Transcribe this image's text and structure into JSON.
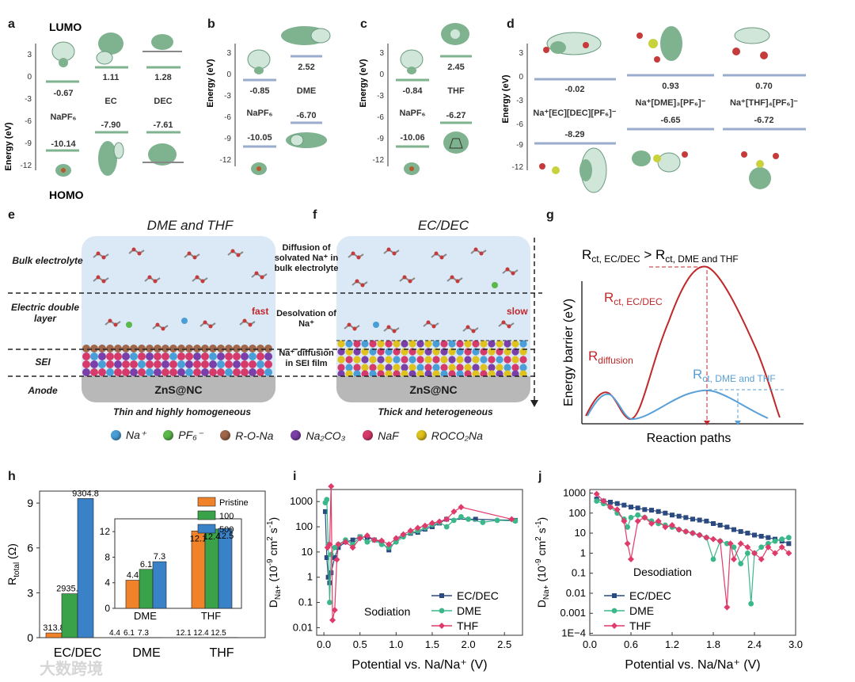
{
  "panel_labels": {
    "a": "a",
    "b": "b",
    "c": "c",
    "d": "d",
    "e": "e",
    "f": "f",
    "g": "g",
    "h": "h",
    "i": "i",
    "j": "j"
  },
  "panel_a": {
    "lumo_label": "LUMO",
    "homo_label": "HOMO",
    "ylabel": "Energy (eV)",
    "yticks": [
      "3",
      "0",
      "-3",
      "-6",
      "-9",
      "-12"
    ],
    "molecules": [
      {
        "name": "NaPF₆",
        "lumo": "-0.67",
        "homo": "-10.14"
      },
      {
        "name": "EC",
        "lumo": "1.11",
        "homo": "-7.90"
      },
      {
        "name": "DEC",
        "lumo": "1.28",
        "homo": "-7.61"
      }
    ]
  },
  "panel_b": {
    "ylabel": "Energy (eV)",
    "yticks": [
      "3",
      "0",
      "-3",
      "-6",
      "-9",
      "-12"
    ],
    "molecules": [
      {
        "name": "NaPF₆",
        "lumo": "-0.85",
        "homo": "-10.05"
      },
      {
        "name": "DME",
        "lumo": "2.52",
        "homo": "-6.70"
      }
    ]
  },
  "panel_c": {
    "ylabel": "Energy (eV)",
    "yticks": [
      "3",
      "0",
      "-3",
      "-6",
      "-9",
      "-12"
    ],
    "molecules": [
      {
        "name": "NaPF₆",
        "lumo": "-0.84",
        "homo": "-10.06"
      },
      {
        "name": "THF",
        "lumo": "2.45",
        "homo": "-6.27"
      }
    ]
  },
  "panel_d": {
    "ylabel": "Energy (eV)",
    "yticks": [
      "3",
      "0",
      "-3",
      "-6",
      "-9",
      "-12"
    ],
    "complexes": [
      {
        "name": "Na⁺[EC][DEC][PF₆]⁻",
        "lumo": "-0.02",
        "homo": "-8.29"
      },
      {
        "name": "Na⁺[DME]₃[PF₆]⁻",
        "lumo": "0.93",
        "homo": "-6.65"
      },
      {
        "name": "Na⁺[THF]₄[PF₆]⁻",
        "lumo": "0.70",
        "homo": "-6.72"
      }
    ]
  },
  "panel_e": {
    "title": "DME and THF",
    "speed": "fast",
    "substrate": "ZnS@NC",
    "caption": "Thin and highly homogeneous"
  },
  "panel_f": {
    "title": "EC/DEC",
    "speed": "slow",
    "substrate": "ZnS@NC",
    "caption": "Thick and heterogeneous"
  },
  "layers": {
    "bulk": "Bulk electrolyte",
    "edl": "Electric double layer",
    "sei": "SEI",
    "anode": "Anode"
  },
  "processes": {
    "diffusion": "Diffusion of solvated Na⁺ in bulk electrolyte",
    "desolvation": "Desolvation of Na⁺",
    "sei_diffusion": "Na⁺ diffusion in SEI film"
  },
  "legend": [
    {
      "label": "Na⁺",
      "color": "#4a9ed8"
    },
    {
      "label": "PF₆⁻",
      "color": "#5cb84a"
    },
    {
      "label": "R-O-Na",
      "color": "#a0664a"
    },
    {
      "label": "Na₂CO₃",
      "color": "#7a3fa8"
    },
    {
      "label": "NaF",
      "color": "#d63a6a"
    },
    {
      "label": "ROCO₂Na",
      "color": "#e0c21c"
    }
  ],
  "panel_g": {
    "inequality": "Rct, EC/DEC > Rct, DME and THF",
    "ineq_left": "R",
    "ineq_left_sub": "ct, EC/DEC",
    "ineq_gt": " > R",
    "ineq_right_sub": "ct, DME and THF",
    "rct_ec": "R",
    "rct_ec_sub": "ct, EC/DEC",
    "rdiff": "R",
    "rdiff_sub": "diffusion",
    "rct_dme": "R",
    "rct_dme_sub": "ct, DME and THF",
    "ylabel": "Energy barrier (eV)",
    "xlabel": "Reaction paths",
    "colors": {
      "ec": "#c0282a",
      "dme": "#5aa0d8"
    }
  },
  "chart_data": [
    {
      "panel": "h",
      "type": "bar",
      "title": "",
      "ylabel": "R_total (Ω)",
      "ylim": [
        0,
        9.8
      ],
      "yticks": [
        "0",
        "3",
        "6",
        "9"
      ],
      "categories": [
        "EC/DEC",
        "DME",
        "THF"
      ],
      "series": [
        {
          "name": "Pristine",
          "values": [
            0.3138,
            0.0044,
            0.0121
          ],
          "labels": [
            "313.8",
            "4.4",
            "12.1"
          ],
          "color": "#f0832a"
        },
        {
          "name": "100",
          "values": [
            2.9355,
            0.0061,
            0.0124
          ],
          "labels": [
            "2935.5",
            "6.1",
            "12.4"
          ],
          "color": "#3aa34a"
        },
        {
          "name": "500",
          "values": [
            9.3048,
            0.0073,
            0.0125
          ],
          "labels": [
            "9304.8",
            "7.3",
            "12.5"
          ],
          "color": "#3a82c8"
        }
      ],
      "scale_note_ylabel": "R_total (Ω) × 1000",
      "bottom_labels": [
        "4.4",
        "6.1",
        "7.3",
        "12.1",
        "12.4",
        "12.5"
      ],
      "inset": {
        "ylim": [
          0,
          14
        ],
        "yticks": [
          "0",
          "4",
          "8",
          "12"
        ],
        "categories": [
          "DME",
          "THF"
        ],
        "values": {
          "Pristine": [
            4.4,
            12.1
          ],
          "100": [
            6.1,
            12.4
          ],
          "500": [
            7.3,
            12.5
          ]
        }
      }
    },
    {
      "panel": "i",
      "type": "line",
      "title": "Sodiation",
      "xlabel": "Potential vs. Na/Na⁺ (V)",
      "ylabel": "D_Na+ (10⁻⁹ cm² s⁻¹)",
      "yscale": "log",
      "ylim": [
        0.005,
        3000
      ],
      "xlim": [
        -0.1,
        2.75
      ],
      "xticks": [
        "0.0",
        "0.5",
        "1.0",
        "1.5",
        "2.0",
        "2.5"
      ],
      "yticks": [
        "0.01",
        "0.1",
        "1",
        "10",
        "100",
        "1000"
      ],
      "series": [
        {
          "name": "EC/DEC",
          "color": "#2a4a80",
          "marker": "square",
          "x": [
            0.02,
            0.04,
            0.06,
            0.08,
            0.1,
            0.15,
            0.2,
            0.3,
            0.4,
            0.5,
            0.6,
            0.7,
            0.8,
            0.9,
            1.0,
            1.1,
            1.2,
            1.3,
            1.4,
            1.5,
            1.6,
            1.7,
            2.1,
            2.65
          ],
          "y": [
            400,
            6,
            1,
            0.6,
            1.5,
            6,
            15,
            25,
            30,
            40,
            38,
            30,
            25,
            12,
            30,
            45,
            55,
            60,
            80,
            100,
            140,
            200,
            200,
            180
          ]
        },
        {
          "name": "DME",
          "color": "#3ab88a",
          "marker": "circle",
          "x": [
            0.02,
            0.04,
            0.06,
            0.08,
            0.1,
            0.15,
            0.2,
            0.3,
            0.4,
            0.5,
            0.6,
            0.7,
            0.8,
            0.9,
            1.0,
            1.1,
            1.2,
            1.3,
            1.4,
            1.5,
            1.6,
            1.7,
            1.8,
            1.9,
            2.0,
            2.2,
            2.4,
            2.65
          ],
          "y": [
            900,
            1200,
            20,
            0.1,
            8,
            15,
            20,
            30,
            20,
            40,
            25,
            30,
            20,
            15,
            25,
            40,
            60,
            70,
            90,
            120,
            150,
            100,
            180,
            250,
            200,
            150,
            180,
            170
          ]
        },
        {
          "name": "THF",
          "color": "#e03a6a",
          "marker": "diamond",
          "x": [
            0.05,
            0.08,
            0.1,
            0.12,
            0.15,
            0.18,
            0.2,
            0.3,
            0.4,
            0.5,
            0.6,
            0.7,
            0.8,
            0.9,
            1.0,
            1.1,
            1.2,
            1.3,
            1.4,
            1.5,
            1.6,
            1.7,
            1.8,
            1.9,
            2.6
          ],
          "y": [
            15,
            20,
            4000,
            0.02,
            0.05,
            5,
            20,
            25,
            15,
            35,
            45,
            30,
            28,
            20,
            35,
            50,
            70,
            90,
            110,
            140,
            160,
            200,
            400,
            600,
            200
          ]
        }
      ]
    },
    {
      "panel": "j",
      "type": "line",
      "title": "Desodiation",
      "xlabel": "Potential vs. Na/Na⁺ (V)",
      "ylabel": "D_Na+ (10⁻⁹ cm² s⁻¹)",
      "yscale": "log",
      "ylim": [
        8e-05,
        1500
      ],
      "xlim": [
        0,
        3.0
      ],
      "xticks": [
        "0.0",
        "0.6",
        "1.2",
        "1.8",
        "2.4",
        "3.0"
      ],
      "yticks": [
        "1E−4",
        "0.001",
        "0.01",
        "0.1",
        "1",
        "10",
        "100",
        "1000"
      ],
      "series": [
        {
          "name": "EC/DEC",
          "color": "#2a4a80",
          "marker": "square",
          "x": [
            0.1,
            0.2,
            0.3,
            0.4,
            0.5,
            0.6,
            0.7,
            0.8,
            0.9,
            1.0,
            1.1,
            1.2,
            1.3,
            1.4,
            1.5,
            1.6,
            1.7,
            1.8,
            1.9,
            2.0,
            2.1,
            2.2,
            2.3,
            2.4,
            2.5,
            2.6,
            2.7,
            2.8,
            2.9
          ],
          "y": [
            500,
            400,
            350,
            300,
            250,
            200,
            180,
            150,
            140,
            120,
            100,
            80,
            70,
            60,
            50,
            45,
            40,
            30,
            25,
            20,
            15,
            12,
            10,
            8,
            7,
            6,
            5,
            4,
            3
          ]
        },
        {
          "name": "DME",
          "color": "#3ab88a",
          "marker": "circle",
          "x": [
            0.1,
            0.2,
            0.3,
            0.4,
            0.5,
            0.55,
            0.6,
            0.7,
            0.8,
            0.9,
            1.0,
            1.1,
            1.2,
            1.3,
            1.4,
            1.5,
            1.6,
            1.7,
            1.8,
            1.9,
            2.0,
            2.1,
            2.2,
            2.3,
            2.35,
            2.4,
            2.5,
            2.6,
            2.7,
            2.8,
            2.9
          ],
          "y": [
            400,
            300,
            200,
            100,
            50,
            20,
            60,
            80,
            60,
            40,
            30,
            25,
            20,
            15,
            12,
            10,
            8,
            6,
            0.5,
            4,
            3,
            2,
            0.3,
            1,
            0.003,
            1,
            2,
            3,
            4,
            5,
            6
          ]
        },
        {
          "name": "THF",
          "color": "#e03a6a",
          "marker": "diamond",
          "x": [
            0.1,
            0.2,
            0.3,
            0.4,
            0.5,
            0.55,
            0.6,
            0.7,
            0.8,
            0.9,
            1.0,
            1.1,
            1.2,
            1.3,
            1.4,
            1.5,
            1.6,
            1.7,
            1.8,
            1.9,
            2.0,
            2.05,
            2.1,
            2.2,
            2.3,
            2.4,
            2.5,
            2.6,
            2.7,
            2.8,
            2.9
          ],
          "y": [
            900,
            400,
            200,
            150,
            40,
            3,
            0.5,
            40,
            60,
            30,
            40,
            20,
            25,
            15,
            12,
            10,
            8,
            6,
            5,
            4,
            0.002,
            3,
            0.5,
            3,
            2,
            1,
            0.5,
            2,
            1,
            2,
            1
          ]
        }
      ]
    }
  ],
  "watermark": "大数跨境"
}
